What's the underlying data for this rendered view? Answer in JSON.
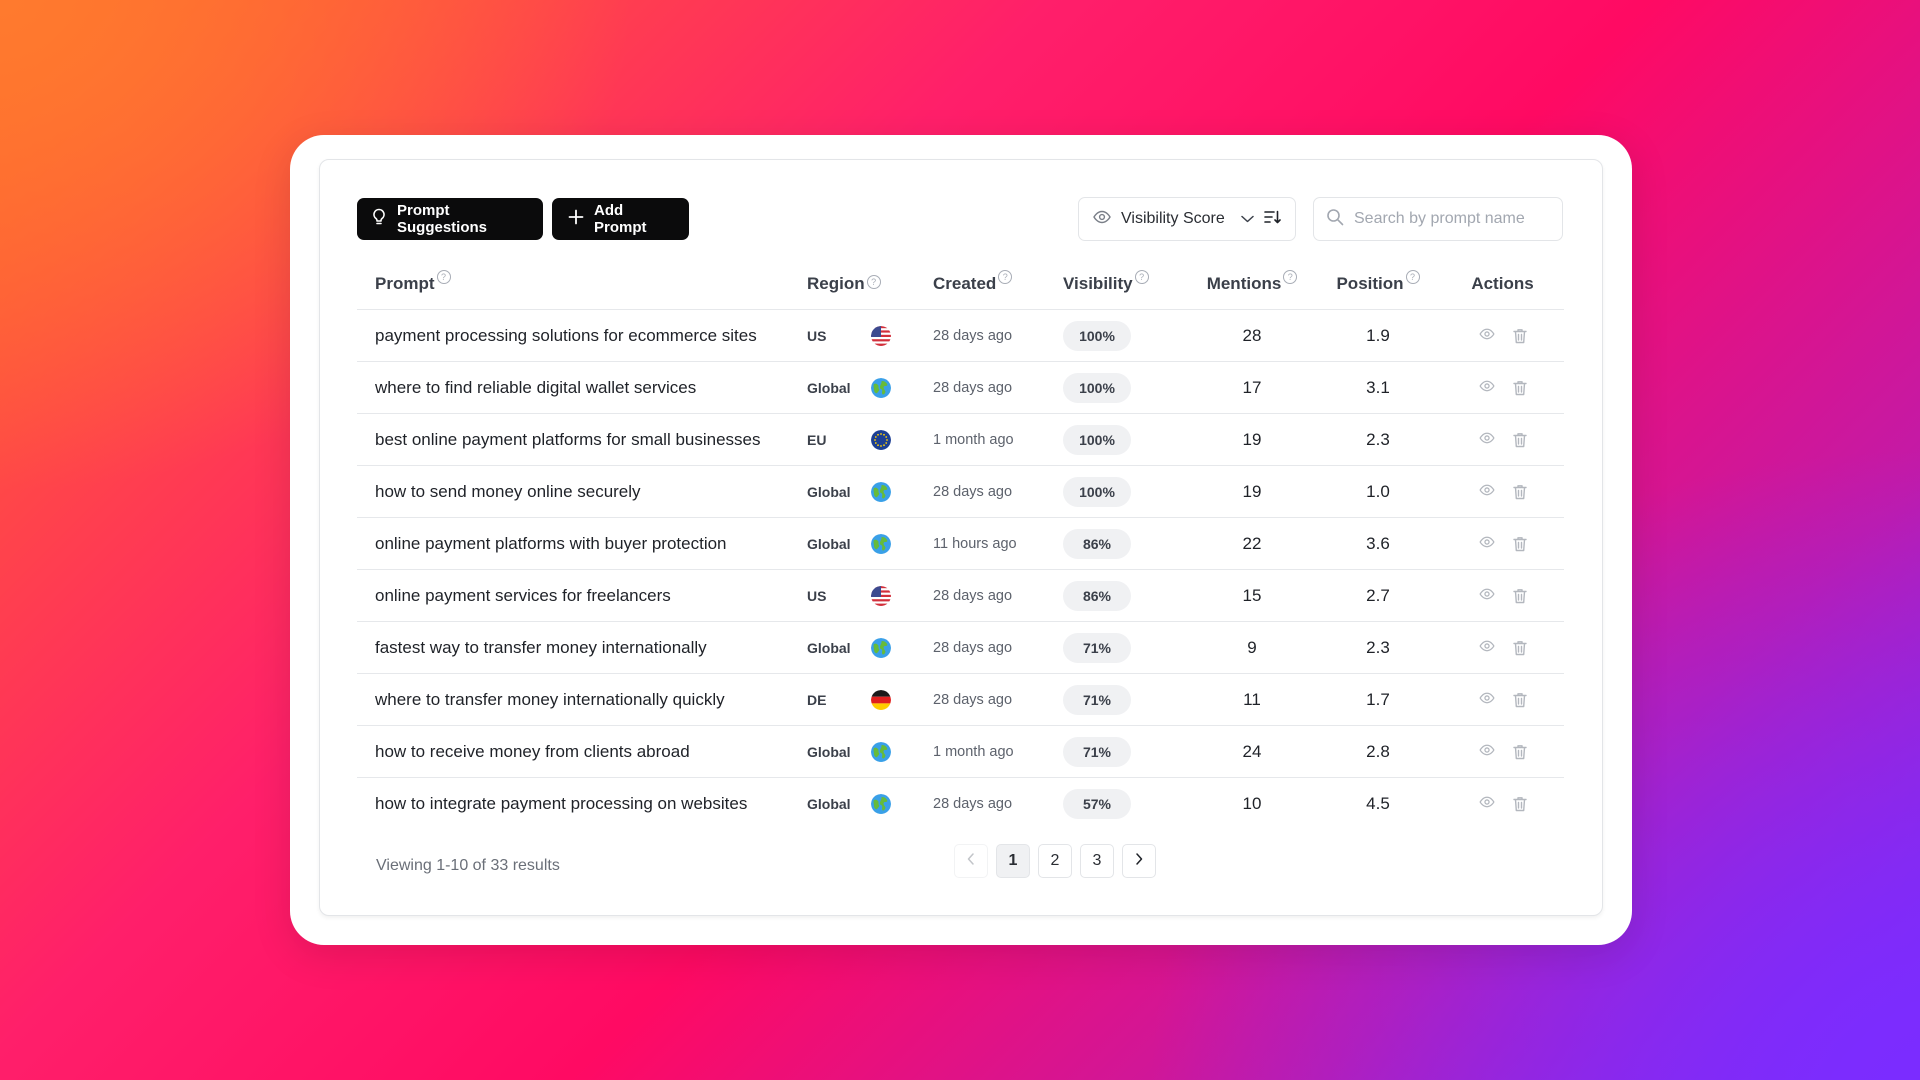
{
  "toolbar": {
    "suggestions_label": "Prompt Suggestions",
    "add_label": "Add Prompt",
    "sort_value": "Visibility Score",
    "search_placeholder": "Search by prompt name"
  },
  "table": {
    "columns": {
      "prompt": "Prompt",
      "region": "Region",
      "created": "Created",
      "visibility": "Visibility",
      "mentions": "Mentions",
      "position": "Position",
      "actions": "Actions"
    },
    "rows": [
      {
        "prompt": "payment processing solutions for ecommerce sites",
        "region": "US",
        "flag": "us",
        "created": "28 days ago",
        "visibility": "100%",
        "mentions": "28",
        "position": "1.9"
      },
      {
        "prompt": "where to find reliable digital wallet services",
        "region": "Global",
        "flag": "globe",
        "created": "28 days ago",
        "visibility": "100%",
        "mentions": "17",
        "position": "3.1"
      },
      {
        "prompt": "best online payment platforms for small businesses",
        "region": "EU",
        "flag": "eu",
        "created": "1 month ago",
        "visibility": "100%",
        "mentions": "19",
        "position": "2.3"
      },
      {
        "prompt": "how to send money online securely",
        "region": "Global",
        "flag": "globe",
        "created": "28 days ago",
        "visibility": "100%",
        "mentions": "19",
        "position": "1.0"
      },
      {
        "prompt": "online payment platforms with buyer protection",
        "region": "Global",
        "flag": "globe",
        "created": "11 hours ago",
        "visibility": "86%",
        "mentions": "22",
        "position": "3.6"
      },
      {
        "prompt": "online payment services for freelancers",
        "region": "US",
        "flag": "us",
        "created": "28 days ago",
        "visibility": "86%",
        "mentions": "15",
        "position": "2.7"
      },
      {
        "prompt": "fastest way to transfer money internationally",
        "region": "Global",
        "flag": "globe",
        "created": "28 days ago",
        "visibility": "71%",
        "mentions": "9",
        "position": "2.3"
      },
      {
        "prompt": "where to transfer money internationally quickly",
        "region": "DE",
        "flag": "de",
        "created": "28 days ago",
        "visibility": "71%",
        "mentions": "11",
        "position": "1.7"
      },
      {
        "prompt": "how to receive money from clients abroad",
        "region": "Global",
        "flag": "globe",
        "created": "1 month ago",
        "visibility": "71%",
        "mentions": "24",
        "position": "2.8"
      },
      {
        "prompt": "how to integrate payment processing on websites",
        "region": "Global",
        "flag": "globe",
        "created": "28 days ago",
        "visibility": "57%",
        "mentions": "10",
        "position": "4.5"
      }
    ]
  },
  "footer": {
    "summary": "Viewing 1-10 of 33 results",
    "pages": [
      "1",
      "2",
      "3"
    ],
    "current_page": "1"
  },
  "icons": {
    "suggestions": "lightbulb-icon",
    "add": "plus-icon",
    "sort_eye": "eye-icon",
    "sort_chevron": "chevron-down-icon",
    "sort_order": "sort-descending-icon",
    "search": "search-icon",
    "view": "eye-icon",
    "delete": "trash-icon",
    "prev": "chevron-left-icon",
    "next": "chevron-right-icon"
  },
  "colors": {
    "primary_button": "#0b0b0c",
    "badge_bg": "#f0f1f3",
    "border": "#e3e5e8"
  }
}
